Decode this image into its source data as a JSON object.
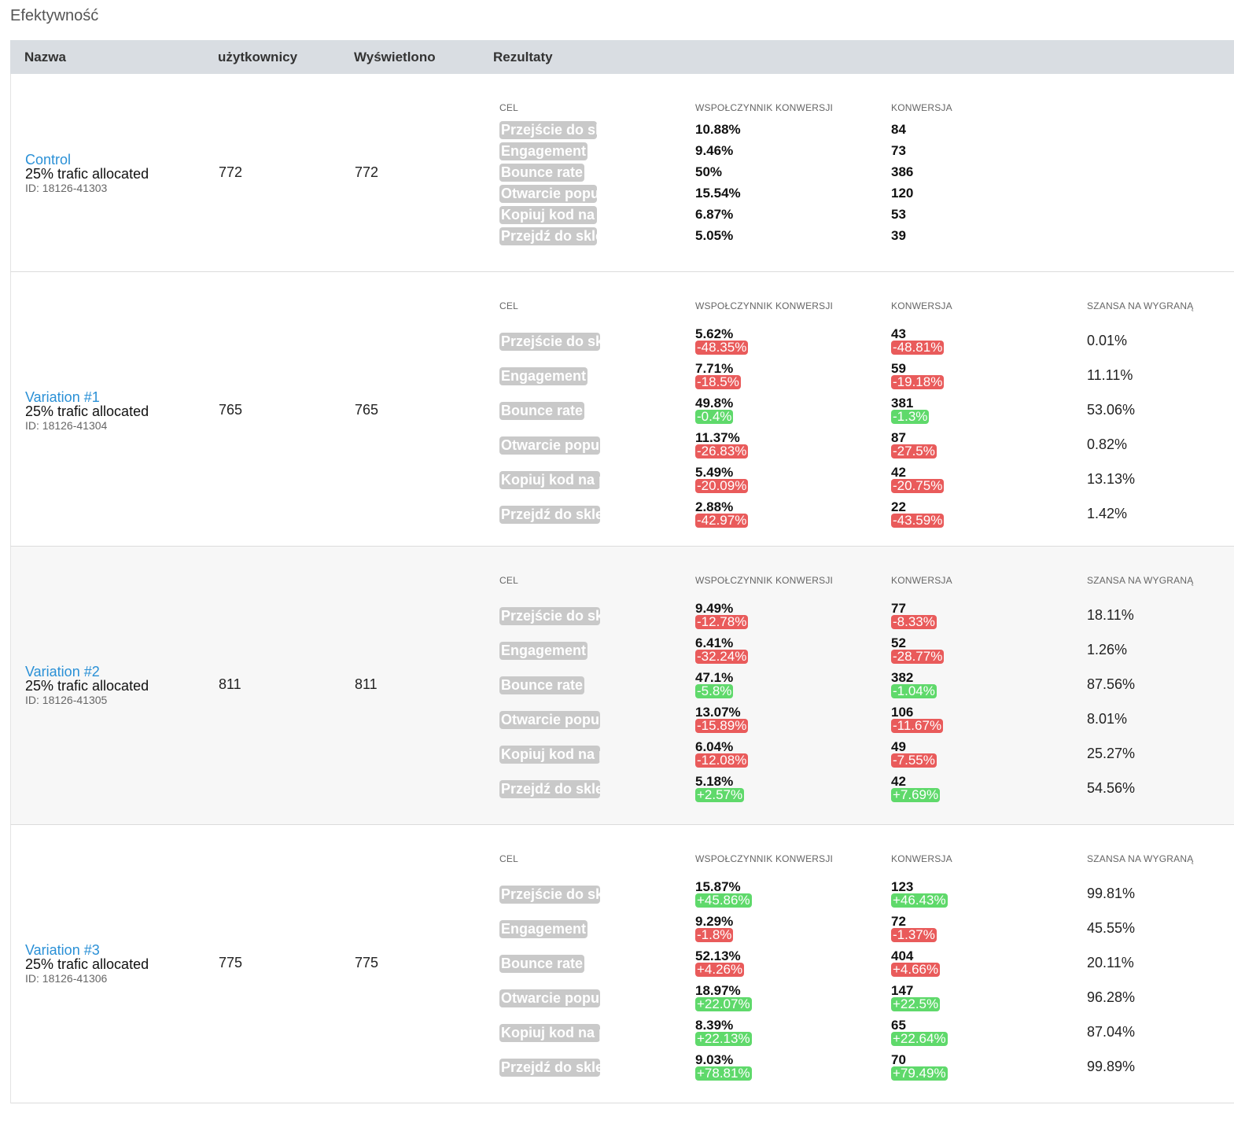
{
  "title": "Efektywność",
  "headers": {
    "name": "Nazwa",
    "users": "użytkownicy",
    "views": "Wyświetlono",
    "results": "Rezultaty"
  },
  "result_headers": {
    "goal": "CEL",
    "rate": "WSPOŁCZYNNIK KONWERSJI",
    "conversion": "KONWERSJA",
    "chance": "SZANSA NA WYGRANĄ"
  },
  "rows": [
    {
      "name": "Control",
      "allocation": "25% trafic allocated",
      "id": "ID: 18126-41303",
      "users": "772",
      "views": "772",
      "goals": [
        {
          "goal": "Przejście do sk",
          "rate": "10.88%",
          "conv": "84"
        },
        {
          "goal": "Engagement",
          "rate": "9.46%",
          "conv": "73"
        },
        {
          "goal": "Bounce rate",
          "rate": "50%",
          "conv": "386"
        },
        {
          "goal": "Otwarcie popup",
          "rate": "15.54%",
          "conv": "120"
        },
        {
          "goal": "Kopiuj kod na p",
          "rate": "6.87%",
          "conv": "53"
        },
        {
          "goal": "Przejdź do skle",
          "rate": "5.05%",
          "conv": "39"
        }
      ]
    },
    {
      "name": "Variation #1",
      "allocation": "25% trafic allocated",
      "id": "ID: 18126-41304",
      "users": "765",
      "views": "765",
      "goals": [
        {
          "goal": "Przejście do sk",
          "rate": "5.62%",
          "rate_delta": "-48.35%",
          "rate_pos": false,
          "conv": "43",
          "conv_delta": "-48.81%",
          "conv_pos": false,
          "chance": "0.01%"
        },
        {
          "goal": "Engagement",
          "rate": "7.71%",
          "rate_delta": "-18.5%",
          "rate_pos": false,
          "conv": "59",
          "conv_delta": "-19.18%",
          "conv_pos": false,
          "chance": "11.11%"
        },
        {
          "goal": "Bounce rate",
          "rate": "49.8%",
          "rate_delta": "-0.4%",
          "rate_pos": true,
          "conv": "381",
          "conv_delta": "-1.3%",
          "conv_pos": true,
          "chance": "53.06%"
        },
        {
          "goal": "Otwarcie popup",
          "rate": "11.37%",
          "rate_delta": "-26.83%",
          "rate_pos": false,
          "conv": "87",
          "conv_delta": "-27.5%",
          "conv_pos": false,
          "chance": "0.82%"
        },
        {
          "goal": "Kopiuj kod na p",
          "rate": "5.49%",
          "rate_delta": "-20.09%",
          "rate_pos": false,
          "conv": "42",
          "conv_delta": "-20.75%",
          "conv_pos": false,
          "chance": "13.13%"
        },
        {
          "goal": "Przejdź do skle",
          "rate": "2.88%",
          "rate_delta": "-42.97%",
          "rate_pos": false,
          "conv": "22",
          "conv_delta": "-43.59%",
          "conv_pos": false,
          "chance": "1.42%"
        }
      ]
    },
    {
      "name": "Variation #2",
      "allocation": "25% trafic allocated",
      "id": "ID: 18126-41305",
      "users": "811",
      "views": "811",
      "goals": [
        {
          "goal": "Przejście do sk",
          "rate": "9.49%",
          "rate_delta": "-12.78%",
          "rate_pos": false,
          "conv": "77",
          "conv_delta": "-8.33%",
          "conv_pos": false,
          "chance": "18.11%"
        },
        {
          "goal": "Engagement",
          "rate": "6.41%",
          "rate_delta": "-32.24%",
          "rate_pos": false,
          "conv": "52",
          "conv_delta": "-28.77%",
          "conv_pos": false,
          "chance": "1.26%"
        },
        {
          "goal": "Bounce rate",
          "rate": "47.1%",
          "rate_delta": "-5.8%",
          "rate_pos": true,
          "conv": "382",
          "conv_delta": "-1.04%",
          "conv_pos": true,
          "chance": "87.56%"
        },
        {
          "goal": "Otwarcie popup",
          "rate": "13.07%",
          "rate_delta": "-15.89%",
          "rate_pos": false,
          "conv": "106",
          "conv_delta": "-11.67%",
          "conv_pos": false,
          "chance": "8.01%"
        },
        {
          "goal": "Kopiuj kod na p",
          "rate": "6.04%",
          "rate_delta": "-12.08%",
          "rate_pos": false,
          "conv": "49",
          "conv_delta": "-7.55%",
          "conv_pos": false,
          "chance": "25.27%"
        },
        {
          "goal": "Przejdź do skle",
          "rate": "5.18%",
          "rate_delta": "+2.57%",
          "rate_pos": true,
          "conv": "42",
          "conv_delta": "+7.69%",
          "conv_pos": true,
          "chance": "54.56%"
        }
      ]
    },
    {
      "name": "Variation #3",
      "allocation": "25% trafic allocated",
      "id": "ID: 18126-41306",
      "users": "775",
      "views": "775",
      "goals": [
        {
          "goal": "Przejście do sk",
          "rate": "15.87%",
          "rate_delta": "+45.86%",
          "rate_pos": true,
          "conv": "123",
          "conv_delta": "+46.43%",
          "conv_pos": true,
          "chance": "99.81%"
        },
        {
          "goal": "Engagement",
          "rate": "9.29%",
          "rate_delta": "-1.8%",
          "rate_pos": false,
          "conv": "72",
          "conv_delta": "-1.37%",
          "conv_pos": false,
          "chance": "45.55%"
        },
        {
          "goal": "Bounce rate",
          "rate": "52.13%",
          "rate_delta": "+4.26%",
          "rate_pos": false,
          "conv": "404",
          "conv_delta": "+4.66%",
          "conv_pos": false,
          "chance": "20.11%"
        },
        {
          "goal": "Otwarcie popup",
          "rate": "18.97%",
          "rate_delta": "+22.07%",
          "rate_pos": true,
          "conv": "147",
          "conv_delta": "+22.5%",
          "conv_pos": true,
          "chance": "96.28%"
        },
        {
          "goal": "Kopiuj kod na p",
          "rate": "8.39%",
          "rate_delta": "+22.13%",
          "rate_pos": true,
          "conv": "65",
          "conv_delta": "+22.64%",
          "conv_pos": true,
          "chance": "87.04%"
        },
        {
          "goal": "Przejdź do skle",
          "rate": "9.03%",
          "rate_delta": "+78.81%",
          "rate_pos": true,
          "conv": "70",
          "conv_delta": "+79.49%",
          "conv_pos": true,
          "chance": "99.89%"
        }
      ]
    }
  ]
}
